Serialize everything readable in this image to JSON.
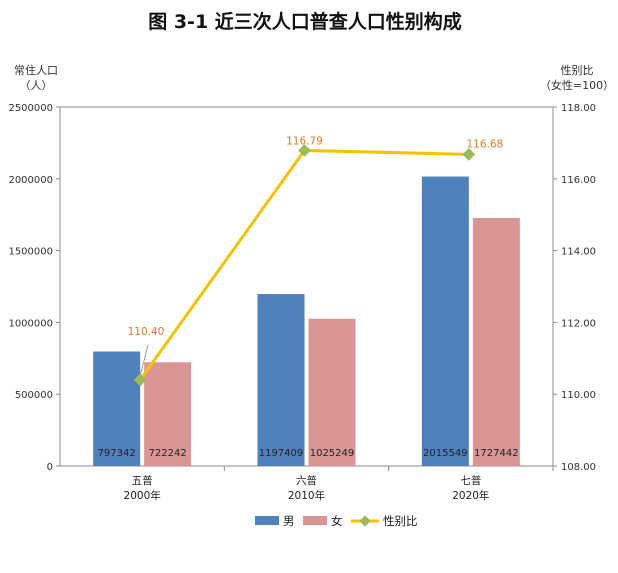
{
  "chart_data": {
    "type": "bar",
    "title": "图 3-1   近三次人口普查人口性别构成",
    "left_axis_title": [
      "常住人口",
      "（人）"
    ],
    "right_axis_title": [
      "性别比",
      "（女性=100）"
    ],
    "categories": [
      {
        "name": "五普",
        "year": "2000年"
      },
      {
        "name": "六普",
        "year": "2010年"
      },
      {
        "name": "七普",
        "year": "2020年"
      }
    ],
    "series": [
      {
        "name": "男",
        "color": "#4F81BD",
        "values": [
          797342,
          1197409,
          2015549
        ]
      },
      {
        "name": "女",
        "color": "#D99694",
        "values": [
          722242,
          1025249,
          1727442
        ]
      }
    ],
    "line_series": {
      "name": "性别比",
      "color": "#F5C200",
      "marker_color": "#9BBB59",
      "values": [
        110.4,
        116.79,
        116.68
      ],
      "labels": [
        "110.40",
        "116.79",
        "116.68"
      ]
    },
    "ylim_left": [
      0,
      2500000
    ],
    "yticks_left": [
      "0",
      "500000",
      "1000000",
      "1500000",
      "2000000",
      "2500000"
    ],
    "ylim_right": [
      108,
      118
    ],
    "yticks_right": [
      "108.00",
      "110.00",
      "112.00",
      "114.00",
      "116.00",
      "118.00"
    ],
    "grid": false,
    "legend_position": "bottom"
  }
}
